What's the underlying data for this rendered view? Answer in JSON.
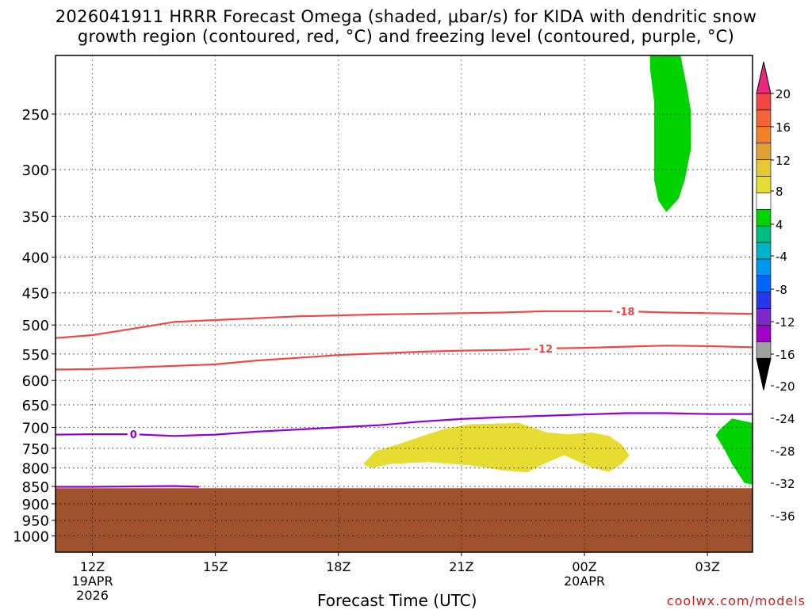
{
  "title_line1": "2026041911 HRRR Forecast Omega (shaded, μbar/s) for KIDA with dendritic snow",
  "title_line2": "growth region (contoured, red, °C) and freezing level (contoured, purple, °C)",
  "credit": "coolwx.com/models",
  "chart_data": {
    "type": "area",
    "xlabel": "Forecast Time (UTC)",
    "ylabel": "",
    "y_axis_type": "log-pressure (mb), inverted",
    "x_range_hours": [
      -0.9,
      16.1
    ],
    "y_range_mb": [
      1050,
      200
    ],
    "x_ticks": [
      {
        "h": 0,
        "label": "12Z",
        "sub1": "19APR",
        "sub2": "2026"
      },
      {
        "h": 3,
        "label": "15Z",
        "sub1": "",
        "sub2": ""
      },
      {
        "h": 6,
        "label": "18Z",
        "sub1": "",
        "sub2": ""
      },
      {
        "h": 9,
        "label": "21Z",
        "sub1": "",
        "sub2": ""
      },
      {
        "h": 12,
        "label": "00Z",
        "sub1": "20APR",
        "sub2": ""
      },
      {
        "h": 15,
        "label": "03Z",
        "sub1": "",
        "sub2": ""
      }
    ],
    "y_ticks": [
      250,
      300,
      350,
      400,
      450,
      500,
      550,
      600,
      650,
      700,
      750,
      800,
      850,
      900,
      950,
      1000
    ],
    "grid": true,
    "terrain": {
      "surface_mb": 855,
      "color": "#a0522d"
    },
    "shaded_regions": [
      {
        "name": "omega 4 to 8",
        "color": "#e6dc32",
        "polygon": [
          [
            6.6,
            790
          ],
          [
            6.9,
            757
          ],
          [
            7.4,
            742
          ],
          [
            8.0,
            722
          ],
          [
            8.6,
            703
          ],
          [
            9.2,
            693
          ],
          [
            10.4,
            690
          ],
          [
            11.1,
            712
          ],
          [
            11.6,
            716
          ],
          [
            12.2,
            712
          ],
          [
            12.6,
            720
          ],
          [
            12.9,
            740
          ],
          [
            13.1,
            768
          ],
          [
            12.9,
            790
          ],
          [
            12.6,
            810
          ],
          [
            12.2,
            800
          ],
          [
            11.5,
            767
          ],
          [
            11.0,
            790
          ],
          [
            10.6,
            812
          ],
          [
            10.0,
            806
          ],
          [
            9.2,
            793
          ],
          [
            8.2,
            785
          ],
          [
            7.3,
            789
          ],
          [
            6.8,
            800
          ]
        ]
      },
      {
        "name": "omega -4 to -8 upper",
        "color": "#00d200",
        "polygon": [
          [
            13.6,
            200
          ],
          [
            14.3,
            200
          ],
          [
            14.5,
            229
          ],
          [
            14.6,
            248
          ],
          [
            14.6,
            280
          ],
          [
            14.45,
            310
          ],
          [
            14.3,
            330
          ],
          [
            14.0,
            345
          ],
          [
            13.8,
            332
          ],
          [
            13.7,
            310
          ],
          [
            13.7,
            270
          ],
          [
            13.7,
            240
          ],
          [
            13.6,
            215
          ]
        ]
      },
      {
        "name": "omega -4 to -8 lower",
        "color": "#00d200",
        "polygon": [
          [
            15.3,
            705
          ],
          [
            15.6,
            680
          ],
          [
            16.1,
            690
          ],
          [
            16.1,
            845
          ],
          [
            15.9,
            840
          ],
          [
            15.6,
            790
          ],
          [
            15.4,
            750
          ],
          [
            15.2,
            718
          ]
        ]
      }
    ],
    "contours": [
      {
        "name": "-18",
        "color": "#f04646",
        "label_at": 13.0,
        "points": [
          [
            -0.9,
            522
          ],
          [
            0.0,
            517
          ],
          [
            1.0,
            506
          ],
          [
            2.0,
            495
          ],
          [
            3.0,
            492
          ],
          [
            5.0,
            486
          ],
          [
            7.0,
            483
          ],
          [
            9.0,
            481
          ],
          [
            10.0,
            480
          ],
          [
            11.0,
            478
          ],
          [
            12.0,
            478
          ],
          [
            13.0,
            478
          ],
          [
            14.0,
            480
          ],
          [
            15.0,
            481
          ],
          [
            16.1,
            482
          ]
        ]
      },
      {
        "name": "-12",
        "color": "#f04646",
        "label_at": 11.0,
        "points": [
          [
            -0.9,
            579
          ],
          [
            0.0,
            578
          ],
          [
            1.0,
            575
          ],
          [
            2.0,
            572
          ],
          [
            3.0,
            569
          ],
          [
            4.0,
            562
          ],
          [
            5.0,
            557
          ],
          [
            6.0,
            552
          ],
          [
            7.0,
            549
          ],
          [
            8.0,
            546
          ],
          [
            9.0,
            544
          ],
          [
            10.0,
            543
          ],
          [
            11.0,
            540
          ],
          [
            12.0,
            539
          ],
          [
            13.0,
            537
          ],
          [
            14.0,
            535
          ],
          [
            15.0,
            536
          ],
          [
            16.1,
            538
          ]
        ]
      },
      {
        "name": "0",
        "color": "#9400d3",
        "label_at": 1.0,
        "points": [
          [
            -0.9,
            717
          ],
          [
            0.0,
            716
          ],
          [
            1.0,
            716
          ],
          [
            2.0,
            720
          ],
          [
            3.0,
            717
          ],
          [
            4.0,
            710
          ],
          [
            5.0,
            705
          ],
          [
            6.0,
            700
          ],
          [
            7.0,
            695
          ],
          [
            8.0,
            687
          ],
          [
            9.0,
            681
          ],
          [
            10.0,
            677
          ],
          [
            11.0,
            674
          ],
          [
            12.0,
            671
          ],
          [
            13.0,
            668
          ],
          [
            14.0,
            668
          ],
          [
            15.0,
            670
          ],
          [
            16.1,
            670
          ]
        ]
      },
      {
        "name": "0 (near surface)",
        "color": "#9400d3",
        "label_at": null,
        "points": [
          [
            -0.9,
            851
          ],
          [
            0.0,
            851
          ],
          [
            1.0,
            850
          ],
          [
            2.0,
            849
          ],
          [
            2.6,
            851
          ]
        ]
      }
    ],
    "colorbar": {
      "label_values": [
        "20",
        "16",
        "12",
        "8",
        "4",
        "-4",
        "-8",
        "-12",
        "-16",
        "-20",
        "-24",
        "-28",
        "-32",
        "-36"
      ],
      "segments": [
        "#e8287c",
        "#f04646",
        "#f06437",
        "#f08228",
        "#e1a032",
        "#e6c832",
        "#e6dc32",
        "#ffffff",
        "#00d200",
        "#00be82",
        "#00b4c8",
        "#0096f0",
        "#0064ff",
        "#2837e6",
        "#7d28c8",
        "#a000c8",
        "#a0a0a0",
        "#000000"
      ]
    }
  }
}
